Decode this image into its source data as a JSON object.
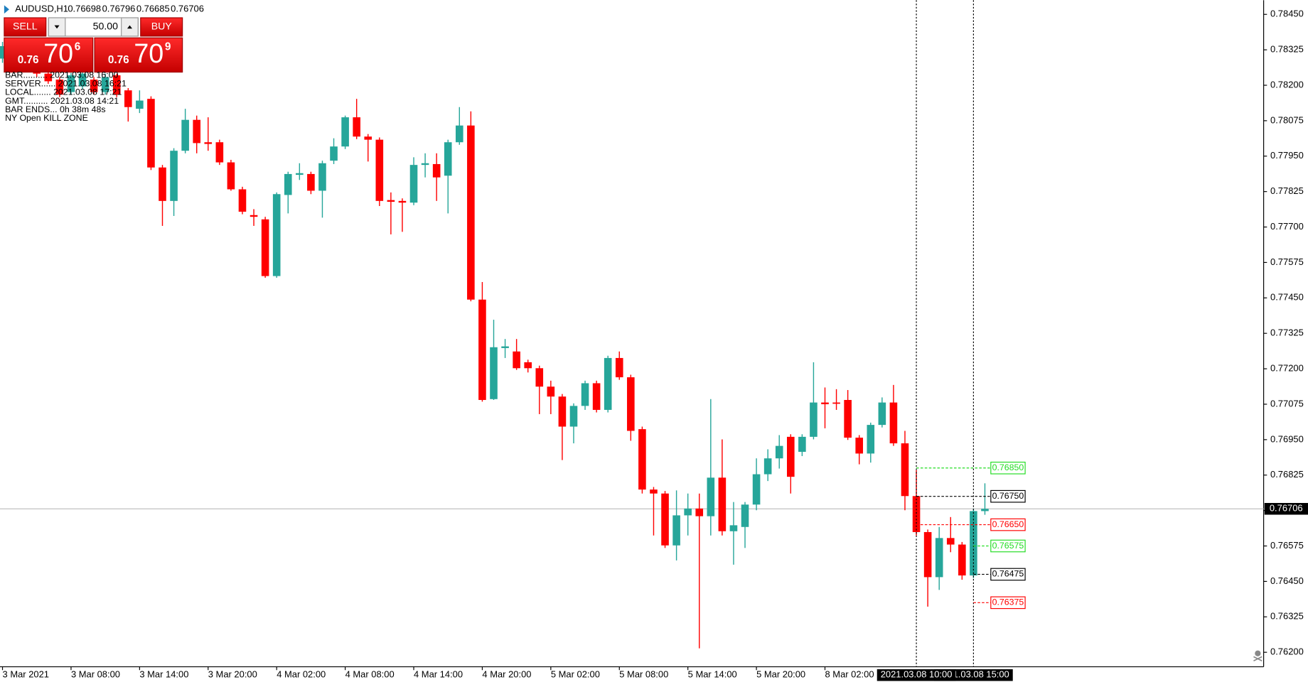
{
  "chart_data": {
    "type": "candlestick",
    "symbol": "AUDUSD,H1",
    "up_color": "#26a69a",
    "down_color": "#ff0000",
    "categories": [
      "3 Mar 2021",
      null,
      null,
      null,
      null,
      null,
      "3 Mar 08:00",
      null,
      null,
      null,
      null,
      null,
      "3 Mar 14:00",
      null,
      null,
      null,
      null,
      null,
      "3 Mar 20:00",
      null,
      null,
      null,
      null,
      null,
      "4 Mar 02:00",
      null,
      null,
      null,
      null,
      null,
      "4 Mar 08:00",
      null,
      null,
      null,
      null,
      null,
      "4 Mar 14:00",
      null,
      null,
      null,
      null,
      null,
      "4 Mar 20:00",
      null,
      null,
      null,
      null,
      null,
      "5 Mar 02:00",
      null,
      null,
      null,
      null,
      null,
      "5 Mar 08:00",
      null,
      null,
      null,
      null,
      null,
      "5 Mar 14:00",
      null,
      null,
      null,
      null,
      null,
      "5 Mar 20:00",
      null,
      null,
      null,
      null,
      null,
      "8 Mar 02:00",
      null,
      null,
      null,
      null,
      null,
      null,
      null,
      null,
      null,
      null,
      null,
      null,
      null,
      null
    ],
    "open": [
      0.78294,
      0.78338,
      0.78308,
      0.78353,
      0.78241,
      0.7822,
      0.78176,
      0.78196,
      0.7822,
      0.78176,
      0.78235,
      0.78182,
      0.78117,
      0.78152,
      0.7791,
      0.77792,
      0.77969,
      0.78078,
      0.77999,
      0.77999,
      0.77928,
      0.77833,
      0.77742,
      0.77727,
      0.77527,
      0.77813,
      0.77884,
      0.77887,
      0.77828,
      0.77934,
      0.77984,
      0.78087,
      0.78019,
      0.78008,
      0.77795,
      0.77792,
      0.77786,
      0.77919,
      0.77922,
      0.77881,
      0.77999,
      0.78058,
      0.77444,
      0.77093,
      0.77273,
      0.77261,
      0.77223,
      0.77202,
      0.77137,
      0.77102,
      0.76996,
      0.77069,
      0.77149,
      0.77055,
      0.77238,
      0.7717,
      0.76987,
      0.76774,
      0.7676,
      0.76577,
      0.76683,
      0.76707,
      0.7668,
      0.76816,
      0.76627,
      0.76642,
      0.76721,
      0.76828,
      0.76884,
      0.7696,
      0.76907,
      0.7696,
      0.77081,
      0.77081,
      0.7709,
      0.76957,
      0.76901,
      0.77002,
      0.77081,
      0.76937,
      0.76751,
      0.76624,
      0.76465,
      0.76603,
      0.7658,
      0.76471,
      0.76698
    ],
    "high": [
      0.78353,
      0.78347,
      0.78364,
      0.78364,
      0.78249,
      0.78229,
      0.78244,
      0.78249,
      0.78229,
      0.78241,
      0.78241,
      0.7819,
      0.78182,
      0.78161,
      0.77919,
      0.77978,
      0.78117,
      0.78093,
      0.78087,
      0.78008,
      0.77937,
      0.77842,
      0.77763,
      0.77736,
      0.77822,
      0.77895,
      0.77925,
      0.77895,
      0.77934,
      0.78013,
      0.78093,
      0.78152,
      0.78028,
      0.78016,
      0.77822,
      0.77801,
      0.77946,
      0.7796,
      0.7796,
      0.78008,
      0.78123,
      0.78108,
      0.77506,
      0.77373,
      0.77305,
      0.77305,
      0.77232,
      0.77211,
      0.77158,
      0.77111,
      0.77078,
      0.77158,
      0.77158,
      0.77246,
      0.77261,
      0.77179,
      0.76996,
      0.76783,
      0.76769,
      0.76771,
      0.7676,
      0.7676,
      0.77093,
      0.76951,
      0.7673,
      0.7673,
      0.76884,
      0.76916,
      0.76966,
      0.76969,
      0.76969,
      0.77223,
      0.77134,
      0.77128,
      0.77125,
      0.76966,
      0.7701,
      0.77099,
      0.77143,
      0.76981,
      0.76842,
      0.76633,
      0.76642,
      0.76677,
      0.76589,
      0.76707,
      0.76796
    ],
    "low": [
      0.78279,
      0.783,
      0.783,
      0.78229,
      0.78205,
      0.78158,
      0.78167,
      0.78187,
      0.78167,
      0.78167,
      0.78158,
      0.78072,
      0.78102,
      0.77901,
      0.77704,
      0.77739,
      0.7796,
      0.7796,
      0.77969,
      0.77919,
      0.77828,
      0.77745,
      0.77704,
      0.77521,
      0.77521,
      0.77748,
      0.77866,
      0.77816,
      0.77733,
      0.77922,
      0.77975,
      0.7801,
      0.77931,
      0.77774,
      0.77674,
      0.77683,
      0.77777,
      0.77875,
      0.77792,
      0.77748,
      0.7799,
      0.77438,
      0.77084,
      0.7709,
      0.77238,
      0.77196,
      0.77187,
      0.7704,
      0.7704,
      0.76878,
      0.76937,
      0.77055,
      0.77046,
      0.77046,
      0.77161,
      0.76946,
      0.7676,
      0.76612,
      0.76568,
      0.76524,
      0.76612,
      0.76214,
      0.76612,
      0.76612,
      0.76509,
      0.76568,
      0.76701,
      0.76804,
      0.76848,
      0.7676,
      0.76892,
      0.76951,
      0.7699,
      0.77055,
      0.76949,
      0.76863,
      0.76869,
      0.76993,
      0.76928,
      0.76701,
      0.76612,
      0.76361,
      0.7642,
      0.76553,
      0.76456,
      0.76462,
      0.76685
    ],
    "close": [
      0.78338,
      0.78308,
      0.78353,
      0.78241,
      0.78214,
      0.78167,
      0.78235,
      0.78241,
      0.78176,
      0.78229,
      0.78167,
      0.78123,
      0.78146,
      0.7791,
      0.77792,
      0.77969,
      0.78078,
      0.77996,
      0.77993,
      0.77928,
      0.77833,
      0.77754,
      0.77736,
      0.77527,
      0.77816,
      0.77887,
      0.7789,
      0.77828,
      0.77925,
      0.77984,
      0.78087,
      0.78019,
      0.78008,
      0.77792,
      0.77789,
      0.77786,
      0.77919,
      0.77925,
      0.77875,
      0.77999,
      0.78058,
      0.77444,
      0.7709,
      0.77276,
      0.77279,
      0.77202,
      0.77202,
      0.77137,
      0.77102,
      0.76996,
      0.77069,
      0.77149,
      0.77055,
      0.77238,
      0.7717,
      0.76981,
      0.76774,
      0.7676,
      0.76577,
      0.76683,
      0.76707,
      0.7668,
      0.76816,
      0.76627,
      0.76648,
      0.76721,
      0.76828,
      0.76884,
      0.76928,
      0.76819,
      0.7696,
      0.77081,
      0.77075,
      0.77078,
      0.76957,
      0.76901,
      0.77002,
      0.77081,
      0.76937,
      0.76751,
      0.76624,
      0.76465,
      0.76603,
      0.7658,
      0.76471,
      0.76698,
      0.76706
    ],
    "ylim": [
      0.76149,
      0.785
    ],
    "yticks": [
      {
        "value": 0.762,
        "label": "0.76200"
      },
      0.76325,
      {
        "value": 0.7645,
        "label": "0.76450"
      },
      0.76575,
      {
        "value": 0.767,
        "label": "0.76700"
      },
      0.76825,
      {
        "value": 0.7695,
        "label": "0.76950"
      },
      0.77075,
      {
        "value": 0.772,
        "label": "0.77200"
      },
      0.77325,
      {
        "value": 0.7745,
        "label": "0.77450"
      },
      0.77575,
      {
        "value": 0.777,
        "label": "0.77700"
      },
      0.77825,
      {
        "value": 0.7795,
        "label": "0.77950"
      },
      0.78075,
      {
        "value": 0.782,
        "label": "0.78200"
      },
      0.78325,
      {
        "value": 0.7845,
        "label": "0.78450"
      }
    ],
    "grid": false,
    "markers": [
      {
        "label": "2021.03.08 10:00"
      },
      {
        "label": "2021.03.08 15:00"
      }
    ],
    "levels": [
      {
        "value": {
          "value": 0.7685,
          "label": "0.76850"
        },
        "color": "#22dd22"
      },
      {
        "value": {
          "value": 0.7675,
          "label": "0.76750"
        },
        "color": "#000000"
      },
      {
        "value": {
          "value": 0.7665,
          "label": "0.76650"
        },
        "color": "#ff0000"
      },
      {
        "value": 0.76575,
        "color": "#22dd22"
      },
      {
        "value": 0.76475,
        "color": "#000000"
      },
      {
        "value": 0.76375,
        "color": "#ff0000"
      }
    ]
  },
  "trade_panel": {
    "sell_label": "SELL",
    "buy_label": "BUY",
    "lot": "50.00",
    "bid": {
      "big": "0.76",
      "pips": "70",
      "point": "6"
    },
    "ask": {
      "big": "0.76",
      "pips": "70",
      "point": "9"
    }
  },
  "info_lines": [
    "BAR.......... 2021.03.08 16:00",
    "SERVER...... 2021.03.08 16:21",
    "LOCAL....... 2021.03.08 17:21",
    "GMT.......... 2021.03.08 14:21",
    "BAR ENDS... 0h 38m 48s",
    "NY Open KILL ZONE"
  ]
}
